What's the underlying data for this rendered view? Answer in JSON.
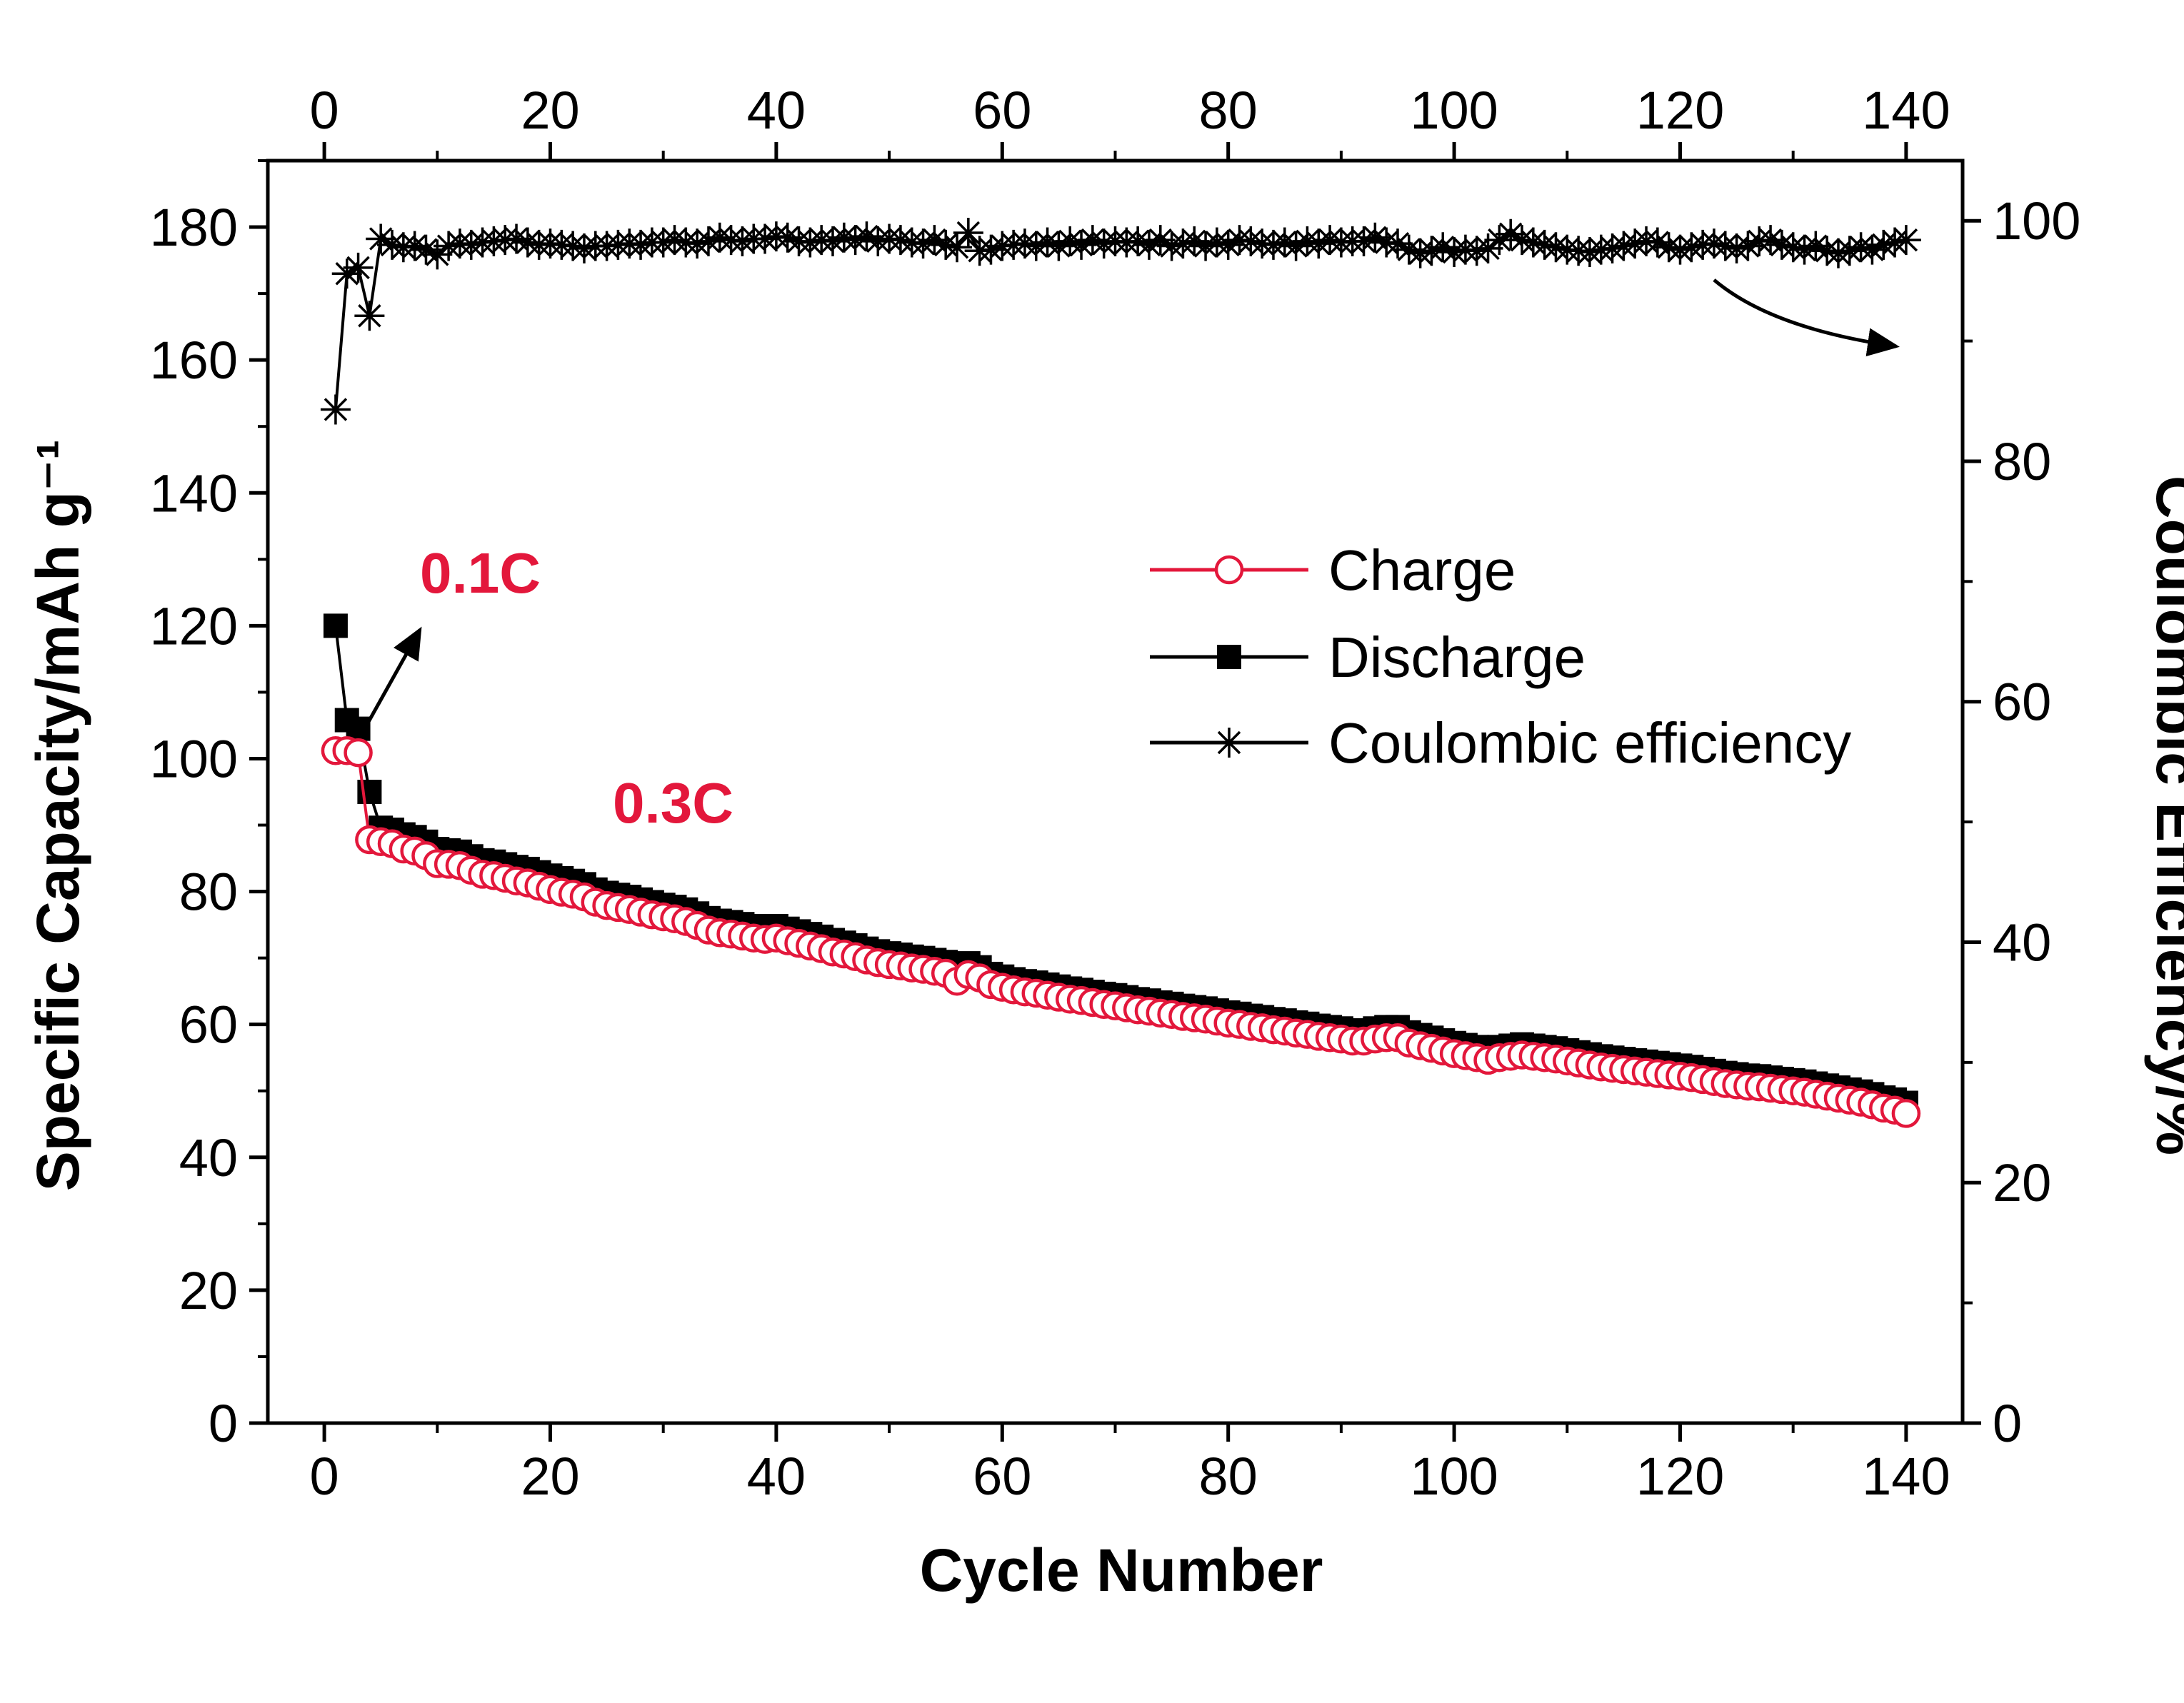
{
  "chart_data": {
    "type": "scatter",
    "xlabel": "Cycle Number",
    "ylabel": "Specific Capacity/mAh g⁻¹",
    "y2label": "Coulombic Efficiency/%",
    "xlim": [
      -5,
      145
    ],
    "ylim": [
      0,
      190
    ],
    "y2lim": [
      0,
      105
    ],
    "xticks": [
      0,
      20,
      40,
      60,
      80,
      100,
      120,
      140
    ],
    "xtick_labels": [
      "0",
      "20",
      "40",
      "60",
      "80",
      "100",
      "120",
      "140"
    ],
    "yticks": [
      0,
      20,
      40,
      60,
      80,
      100,
      120,
      140,
      160,
      180
    ],
    "ytick_labels": [
      "0",
      "20",
      "40",
      "60",
      "80",
      "100",
      "120",
      "140",
      "160",
      "180"
    ],
    "y2ticks": [
      0,
      20,
      40,
      60,
      80,
      100
    ],
    "y2tick_labels": [
      "0",
      "20",
      "40",
      "60",
      "80",
      "100"
    ],
    "grid": false,
    "legend_position": "center-right",
    "colors": {
      "charge": "#e3173b",
      "discharge": "#000000",
      "efficiency": "#000000",
      "annotation": "#e3173b"
    },
    "annotations": {
      "rate1": "0.1C",
      "rate2": "0.3C"
    },
    "series": [
      {
        "name": "Charge",
        "axis": "left",
        "marker": "open-circle",
        "x": [
          1,
          2,
          3,
          4,
          5,
          6,
          7,
          8,
          9,
          10,
          11,
          12,
          13,
          14,
          15,
          16,
          17,
          18,
          19,
          20,
          21,
          22,
          23,
          24,
          25,
          26,
          27,
          28,
          29,
          30,
          31,
          32,
          33,
          34,
          35,
          36,
          37,
          38,
          39,
          40,
          41,
          42,
          43,
          44,
          45,
          46,
          47,
          48,
          49,
          50,
          51,
          52,
          53,
          54,
          55,
          56,
          57,
          58,
          59,
          60,
          61,
          62,
          63,
          64,
          65,
          66,
          67,
          68,
          69,
          70,
          71,
          72,
          73,
          74,
          75,
          76,
          77,
          78,
          79,
          80,
          81,
          82,
          83,
          84,
          85,
          86,
          87,
          88,
          89,
          90,
          91,
          92,
          93,
          94,
          95,
          96,
          97,
          98,
          99,
          100,
          101,
          102,
          103,
          104,
          105,
          106,
          107,
          108,
          109,
          110,
          111,
          112,
          113,
          114,
          115,
          116,
          117,
          118,
          119,
          120,
          121,
          122,
          123,
          124,
          125,
          126,
          127,
          128,
          129,
          130,
          131,
          132,
          133,
          134,
          135,
          136,
          137,
          138,
          139,
          140
        ],
        "values": [
          101.2,
          101.2,
          100.9,
          87.8,
          87.5,
          87.2,
          86.4,
          86.1,
          85.4,
          84.2,
          84.1,
          83.9,
          83.2,
          82.6,
          82.4,
          82.0,
          81.6,
          81.3,
          80.8,
          80.3,
          79.9,
          79.6,
          79.2,
          78.4,
          77.9,
          77.6,
          77.3,
          76.9,
          76.5,
          76.2,
          75.9,
          75.5,
          74.9,
          74.2,
          73.8,
          73.6,
          73.3,
          73.0,
          72.8,
          73.0,
          72.6,
          72.2,
          71.8,
          71.4,
          70.9,
          70.6,
          70.2,
          69.7,
          69.3,
          69.0,
          68.8,
          68.5,
          68.3,
          68.0,
          67.7,
          66.5,
          67.5,
          67.0,
          66.0,
          65.6,
          65.2,
          64.9,
          64.7,
          64.4,
          64.1,
          63.8,
          63.6,
          63.3,
          63.0,
          62.8,
          62.5,
          62.2,
          62.0,
          61.7,
          61.5,
          61.2,
          61.0,
          60.8,
          60.5,
          60.2,
          60.0,
          59.7,
          59.5,
          59.2,
          59.0,
          58.7,
          58.5,
          58.2,
          58.0,
          57.8,
          57.5,
          57.5,
          57.8,
          58.0,
          58.0,
          57.2,
          56.8,
          56.4,
          56.0,
          55.6,
          55.3,
          55.0,
          54.6,
          55.0,
          55.2,
          55.4,
          55.2,
          55.0,
          54.8,
          54.5,
          54.2,
          53.9,
          53.6,
          53.4,
          53.2,
          53.0,
          52.8,
          52.6,
          52.4,
          52.2,
          52.0,
          51.7,
          51.4,
          51.1,
          50.9,
          50.7,
          50.6,
          50.4,
          50.2,
          50.0,
          49.8,
          49.5,
          49.2,
          48.9,
          48.6,
          48.3,
          47.9,
          47.4,
          47.1,
          46.6
        ]
      },
      {
        "name": "Discharge",
        "axis": "left",
        "marker": "filled-square",
        "x": [
          1,
          2,
          3,
          4,
          5,
          6,
          7,
          8,
          9,
          10,
          11,
          12,
          13,
          14,
          15,
          16,
          17,
          18,
          19,
          20,
          21,
          22,
          23,
          24,
          25,
          26,
          27,
          28,
          29,
          30,
          31,
          32,
          33,
          34,
          35,
          36,
          37,
          38,
          39,
          40,
          41,
          42,
          43,
          44,
          45,
          46,
          47,
          48,
          49,
          50,
          51,
          52,
          53,
          54,
          55,
          56,
          57,
          58,
          59,
          60,
          61,
          62,
          63,
          64,
          65,
          66,
          67,
          68,
          69,
          70,
          71,
          72,
          73,
          74,
          75,
          76,
          77,
          78,
          79,
          80,
          81,
          82,
          83,
          84,
          85,
          86,
          87,
          88,
          89,
          90,
          91,
          92,
          93,
          94,
          95,
          96,
          97,
          98,
          99,
          100,
          101,
          102,
          103,
          104,
          105,
          106,
          107,
          108,
          109,
          110,
          111,
          112,
          113,
          114,
          115,
          116,
          117,
          118,
          119,
          120,
          121,
          122,
          123,
          124,
          125,
          126,
          127,
          128,
          129,
          130,
          131,
          132,
          133,
          134,
          135,
          136,
          137,
          138,
          139,
          140
        ],
        "values": [
          120.0,
          105.8,
          104.5,
          95.0,
          89.6,
          89.3,
          88.6,
          88.2,
          87.5,
          86.4,
          86.2,
          86.0,
          85.3,
          84.7,
          84.5,
          84.1,
          83.7,
          83.4,
          82.9,
          82.4,
          82.0,
          81.6,
          81.1,
          80.3,
          79.8,
          79.5,
          79.2,
          78.8,
          78.4,
          78.0,
          77.7,
          77.3,
          76.7,
          76.0,
          75.6,
          75.4,
          75.1,
          74.8,
          74.6,
          74.8,
          74.4,
          74.0,
          73.6,
          73.2,
          72.7,
          72.3,
          71.9,
          71.4,
          71.0,
          70.7,
          70.5,
          70.2,
          70.0,
          69.7,
          69.4,
          68.5,
          69.2,
          68.6,
          67.6,
          67.2,
          66.8,
          66.5,
          66.3,
          66.0,
          65.7,
          65.4,
          65.2,
          64.9,
          64.6,
          64.4,
          64.1,
          63.8,
          63.6,
          63.3,
          63.1,
          62.8,
          62.6,
          62.4,
          62.1,
          61.8,
          61.6,
          61.3,
          61.1,
          60.8,
          60.6,
          60.3,
          60.1,
          59.8,
          59.6,
          59.4,
          59.1,
          59.1,
          59.4,
          59.6,
          59.6,
          58.8,
          58.4,
          58.0,
          57.6,
          57.2,
          56.9,
          56.6,
          56.2,
          56.6,
          56.8,
          57.0,
          56.8,
          56.6,
          56.4,
          56.1,
          55.8,
          55.5,
          55.2,
          55.0,
          54.8,
          54.6,
          54.4,
          54.2,
          54.0,
          53.8,
          53.6,
          53.3,
          53.0,
          52.7,
          52.5,
          52.3,
          52.2,
          52.0,
          51.8,
          51.6,
          51.4,
          51.1,
          50.8,
          50.5,
          50.2,
          49.9,
          49.5,
          49.0,
          48.7,
          48.2
        ]
      },
      {
        "name": "Coulombic efficiency",
        "axis": "right",
        "marker": "asterisk",
        "x": [
          1,
          2,
          3,
          4,
          5,
          6,
          7,
          8,
          9,
          10,
          11,
          12,
          13,
          14,
          15,
          16,
          17,
          18,
          19,
          20,
          21,
          22,
          23,
          24,
          25,
          26,
          27,
          28,
          29,
          30,
          31,
          32,
          33,
          34,
          35,
          36,
          37,
          38,
          39,
          40,
          41,
          42,
          43,
          44,
          45,
          46,
          47,
          48,
          49,
          50,
          51,
          52,
          53,
          54,
          55,
          56,
          57,
          58,
          59,
          60,
          61,
          62,
          63,
          64,
          65,
          66,
          67,
          68,
          69,
          70,
          71,
          72,
          73,
          74,
          75,
          76,
          77,
          78,
          79,
          80,
          81,
          82,
          83,
          84,
          85,
          86,
          87,
          88,
          89,
          90,
          91,
          92,
          93,
          94,
          95,
          96,
          97,
          98,
          99,
          100,
          101,
          102,
          103,
          104,
          105,
          106,
          107,
          108,
          109,
          110,
          111,
          112,
          113,
          114,
          115,
          116,
          117,
          118,
          119,
          120,
          121,
          122,
          123,
          124,
          125,
          126,
          127,
          128,
          129,
          130,
          131,
          132,
          133,
          134,
          135,
          136,
          137,
          138,
          139,
          140
        ],
        "values": [
          84.3,
          95.6,
          96.1,
          92.1,
          98.5,
          98.0,
          97.8,
          97.9,
          97.6,
          97.2,
          97.9,
          98.1,
          98.0,
          98.2,
          98.3,
          98.4,
          98.5,
          98.2,
          98.0,
          98.1,
          98.0,
          97.9,
          97.7,
          97.9,
          97.9,
          98.0,
          98.1,
          98.0,
          98.2,
          98.2,
          98.4,
          98.2,
          98.1,
          98.3,
          98.6,
          98.4,
          98.3,
          98.5,
          98.5,
          98.7,
          98.6,
          98.3,
          98.2,
          98.4,
          98.3,
          98.6,
          98.4,
          98.7,
          98.3,
          98.5,
          98.4,
          98.2,
          98.1,
          98.4,
          98.0,
          97.8,
          99.0,
          97.5,
          97.6,
          97.9,
          98.0,
          98.1,
          97.9,
          98.2,
          97.9,
          98.3,
          98.0,
          98.4,
          98.1,
          98.3,
          98.2,
          98.3,
          98.0,
          98.4,
          97.9,
          98.1,
          98.3,
          97.9,
          98.2,
          98.0,
          98.4,
          98.3,
          98.1,
          98.0,
          98.2,
          97.9,
          98.3,
          98.1,
          98.4,
          98.2,
          98.3,
          98.3,
          98.6,
          98.2,
          98.1,
          97.6,
          97.3,
          97.5,
          97.8,
          97.4,
          97.6,
          97.5,
          97.7,
          98.4,
          98.9,
          98.4,
          98.2,
          98.0,
          97.8,
          97.6,
          97.5,
          97.4,
          97.6,
          97.7,
          97.9,
          98.1,
          98.3,
          98.2,
          97.8,
          97.6,
          97.8,
          98.0,
          98.1,
          97.9,
          97.7,
          97.9,
          98.3,
          98.4,
          98.0,
          97.8,
          97.6,
          97.9,
          97.5,
          97.3,
          97.5,
          97.8,
          97.6,
          98.0,
          98.2,
          98.4
        ]
      }
    ]
  }
}
